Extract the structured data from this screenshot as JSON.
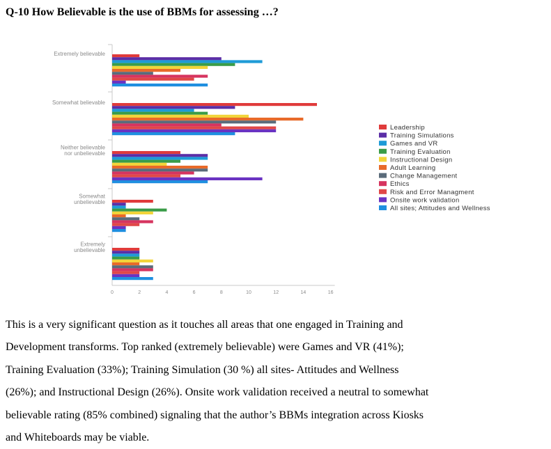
{
  "heading": "Q-10 How Believable is the use of BBMs for assessing …?",
  "chart_data": {
    "type": "bar",
    "orientation": "horizontal",
    "title": "",
    "xlabel": "",
    "ylabel": "",
    "xlim": [
      0,
      16
    ],
    "x_ticks": [
      "0",
      "2",
      "4",
      "6",
      "8",
      "10",
      "12",
      "14",
      "16"
    ],
    "grid": false,
    "legend_position": "right",
    "categories": [
      [
        "Extremely believable"
      ],
      [
        "Somewhat believable"
      ],
      [
        "Neither believable",
        "nor unbelievable"
      ],
      [
        "Somewhat",
        "unbelievable"
      ],
      [
        "Extremely",
        "unbelievable"
      ]
    ],
    "series": [
      {
        "name": "Leadership",
        "color": "#e03b3b",
        "values": [
          2,
          15,
          5,
          3,
          2
        ]
      },
      {
        "name": "Training Simulations",
        "color": "#5b2ea6",
        "values": [
          8,
          9,
          7,
          1,
          2
        ]
      },
      {
        "name": "Games and VR",
        "color": "#1e9bd7",
        "values": [
          11,
          6,
          7,
          1,
          2
        ]
      },
      {
        "name": "Training Evaluation",
        "color": "#3a9c48",
        "values": [
          9,
          7,
          5,
          4,
          2
        ]
      },
      {
        "name": "Instructional Design",
        "color": "#f2d43a",
        "values": [
          7,
          10,
          4,
          3,
          3
        ]
      },
      {
        "name": "Adult Learning",
        "color": "#e86a2a",
        "values": [
          5,
          14,
          7,
          1,
          2
        ]
      },
      {
        "name": "Change Management",
        "color": "#5a6b7a",
        "values": [
          3,
          12,
          7,
          2,
          3
        ]
      },
      {
        "name": "Ethics",
        "color": "#d6345f",
        "values": [
          7,
          8,
          6,
          3,
          3
        ]
      },
      {
        "name": "Risk and Error Managment",
        "color": "#e04848",
        "values": [
          6,
          12,
          5,
          2,
          2
        ]
      },
      {
        "name": "Onsite work validation",
        "color": "#6a33c2",
        "values": [
          1,
          12,
          11,
          1,
          2
        ]
      },
      {
        "name": "All sites; Attitudes and Wellness",
        "color": "#1f8fe0",
        "values": [
          7,
          9,
          7,
          1,
          3
        ]
      }
    ]
  },
  "paragraph": [
    "This is a very significant question as it touches all areas that one engaged in Training and",
    "Development transforms. Top ranked (extremely believable) were Games and VR (41%);",
    "Training Evaluation (33%); Training Simulation (30 %) all sites- Attitudes and Wellness",
    "(26%); and Instructional Design (26%). Onsite work validation received a neutral to somewhat",
    "believable rating (85% combined) signaling that the author’s BBMs integration across Kiosks",
    "and Whiteboards may be viable."
  ]
}
